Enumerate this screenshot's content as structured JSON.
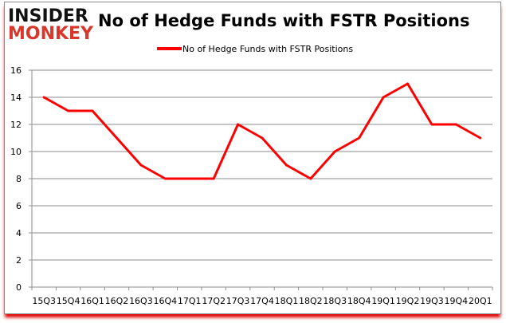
{
  "logo": {
    "line1": "INSIDER",
    "line2": "MONKEY"
  },
  "chart_data": {
    "type": "line",
    "title": "No of Hedge Funds with FSTR Positions",
    "xlabel": "",
    "ylabel": "",
    "categories": [
      "15Q3",
      "15Q4",
      "16Q1",
      "16Q2",
      "16Q3",
      "16Q4",
      "17Q1",
      "17Q2",
      "17Q3",
      "17Q4",
      "18Q1",
      "18Q2",
      "18Q3",
      "18Q4",
      "19Q1",
      "19Q2",
      "19Q3",
      "19Q4",
      "20Q1"
    ],
    "series": [
      {
        "name": "No of Hedge Funds with FSTR Positions",
        "color": "#ff0000",
        "values": [
          14,
          13,
          13,
          11,
          9,
          8,
          8,
          8,
          12,
          11,
          9,
          8,
          10,
          11,
          14,
          15,
          12,
          12,
          11
        ]
      }
    ],
    "ylim": [
      0,
      16
    ],
    "yticks": [
      0,
      2,
      4,
      6,
      8,
      10,
      12,
      14,
      16
    ],
    "grid": true,
    "legend": "top-center"
  }
}
